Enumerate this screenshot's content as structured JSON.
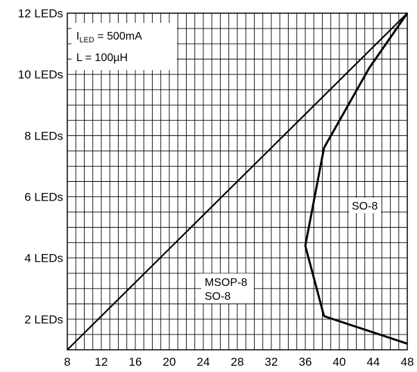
{
  "chart_data": {
    "type": "line",
    "title": "",
    "xlabel": "",
    "ylabel": "",
    "x_ticks": [
      8,
      12,
      16,
      20,
      24,
      28,
      32,
      36,
      40,
      44,
      48
    ],
    "y_ticks": [
      {
        "value": 2,
        "label": "2 LEDs"
      },
      {
        "value": 4,
        "label": "4 LEDs"
      },
      {
        "value": 6,
        "label": "6 LEDs"
      },
      {
        "value": 8,
        "label": "8 LEDs"
      },
      {
        "value": 10,
        "label": "10 LEDs"
      },
      {
        "value": 12,
        "label": "12 LEDs"
      }
    ],
    "xlim": [
      8,
      48
    ],
    "ylim": [
      1,
      12
    ],
    "grid": true,
    "series": [
      {
        "name": "",
        "color": "#000000",
        "points": [
          [
            8,
            1
          ],
          [
            48,
            12
          ]
        ]
      },
      {
        "name": "",
        "color": "#000000",
        "points": [
          [
            48,
            1.2
          ],
          [
            38.2,
            2.1
          ],
          [
            36,
            4.4
          ],
          [
            38.2,
            7.6
          ],
          [
            43.5,
            10.2
          ],
          [
            48,
            12
          ]
        ]
      }
    ],
    "annotations": {
      "condition_current_prefix": "I",
      "condition_current_sub": "LED",
      "condition_current_value": " = 500mA",
      "condition_inductance": "L = 100µH",
      "region_left_line1": "MSOP-8",
      "region_left_line2": "SO-8",
      "region_right": "SO-8"
    }
  }
}
